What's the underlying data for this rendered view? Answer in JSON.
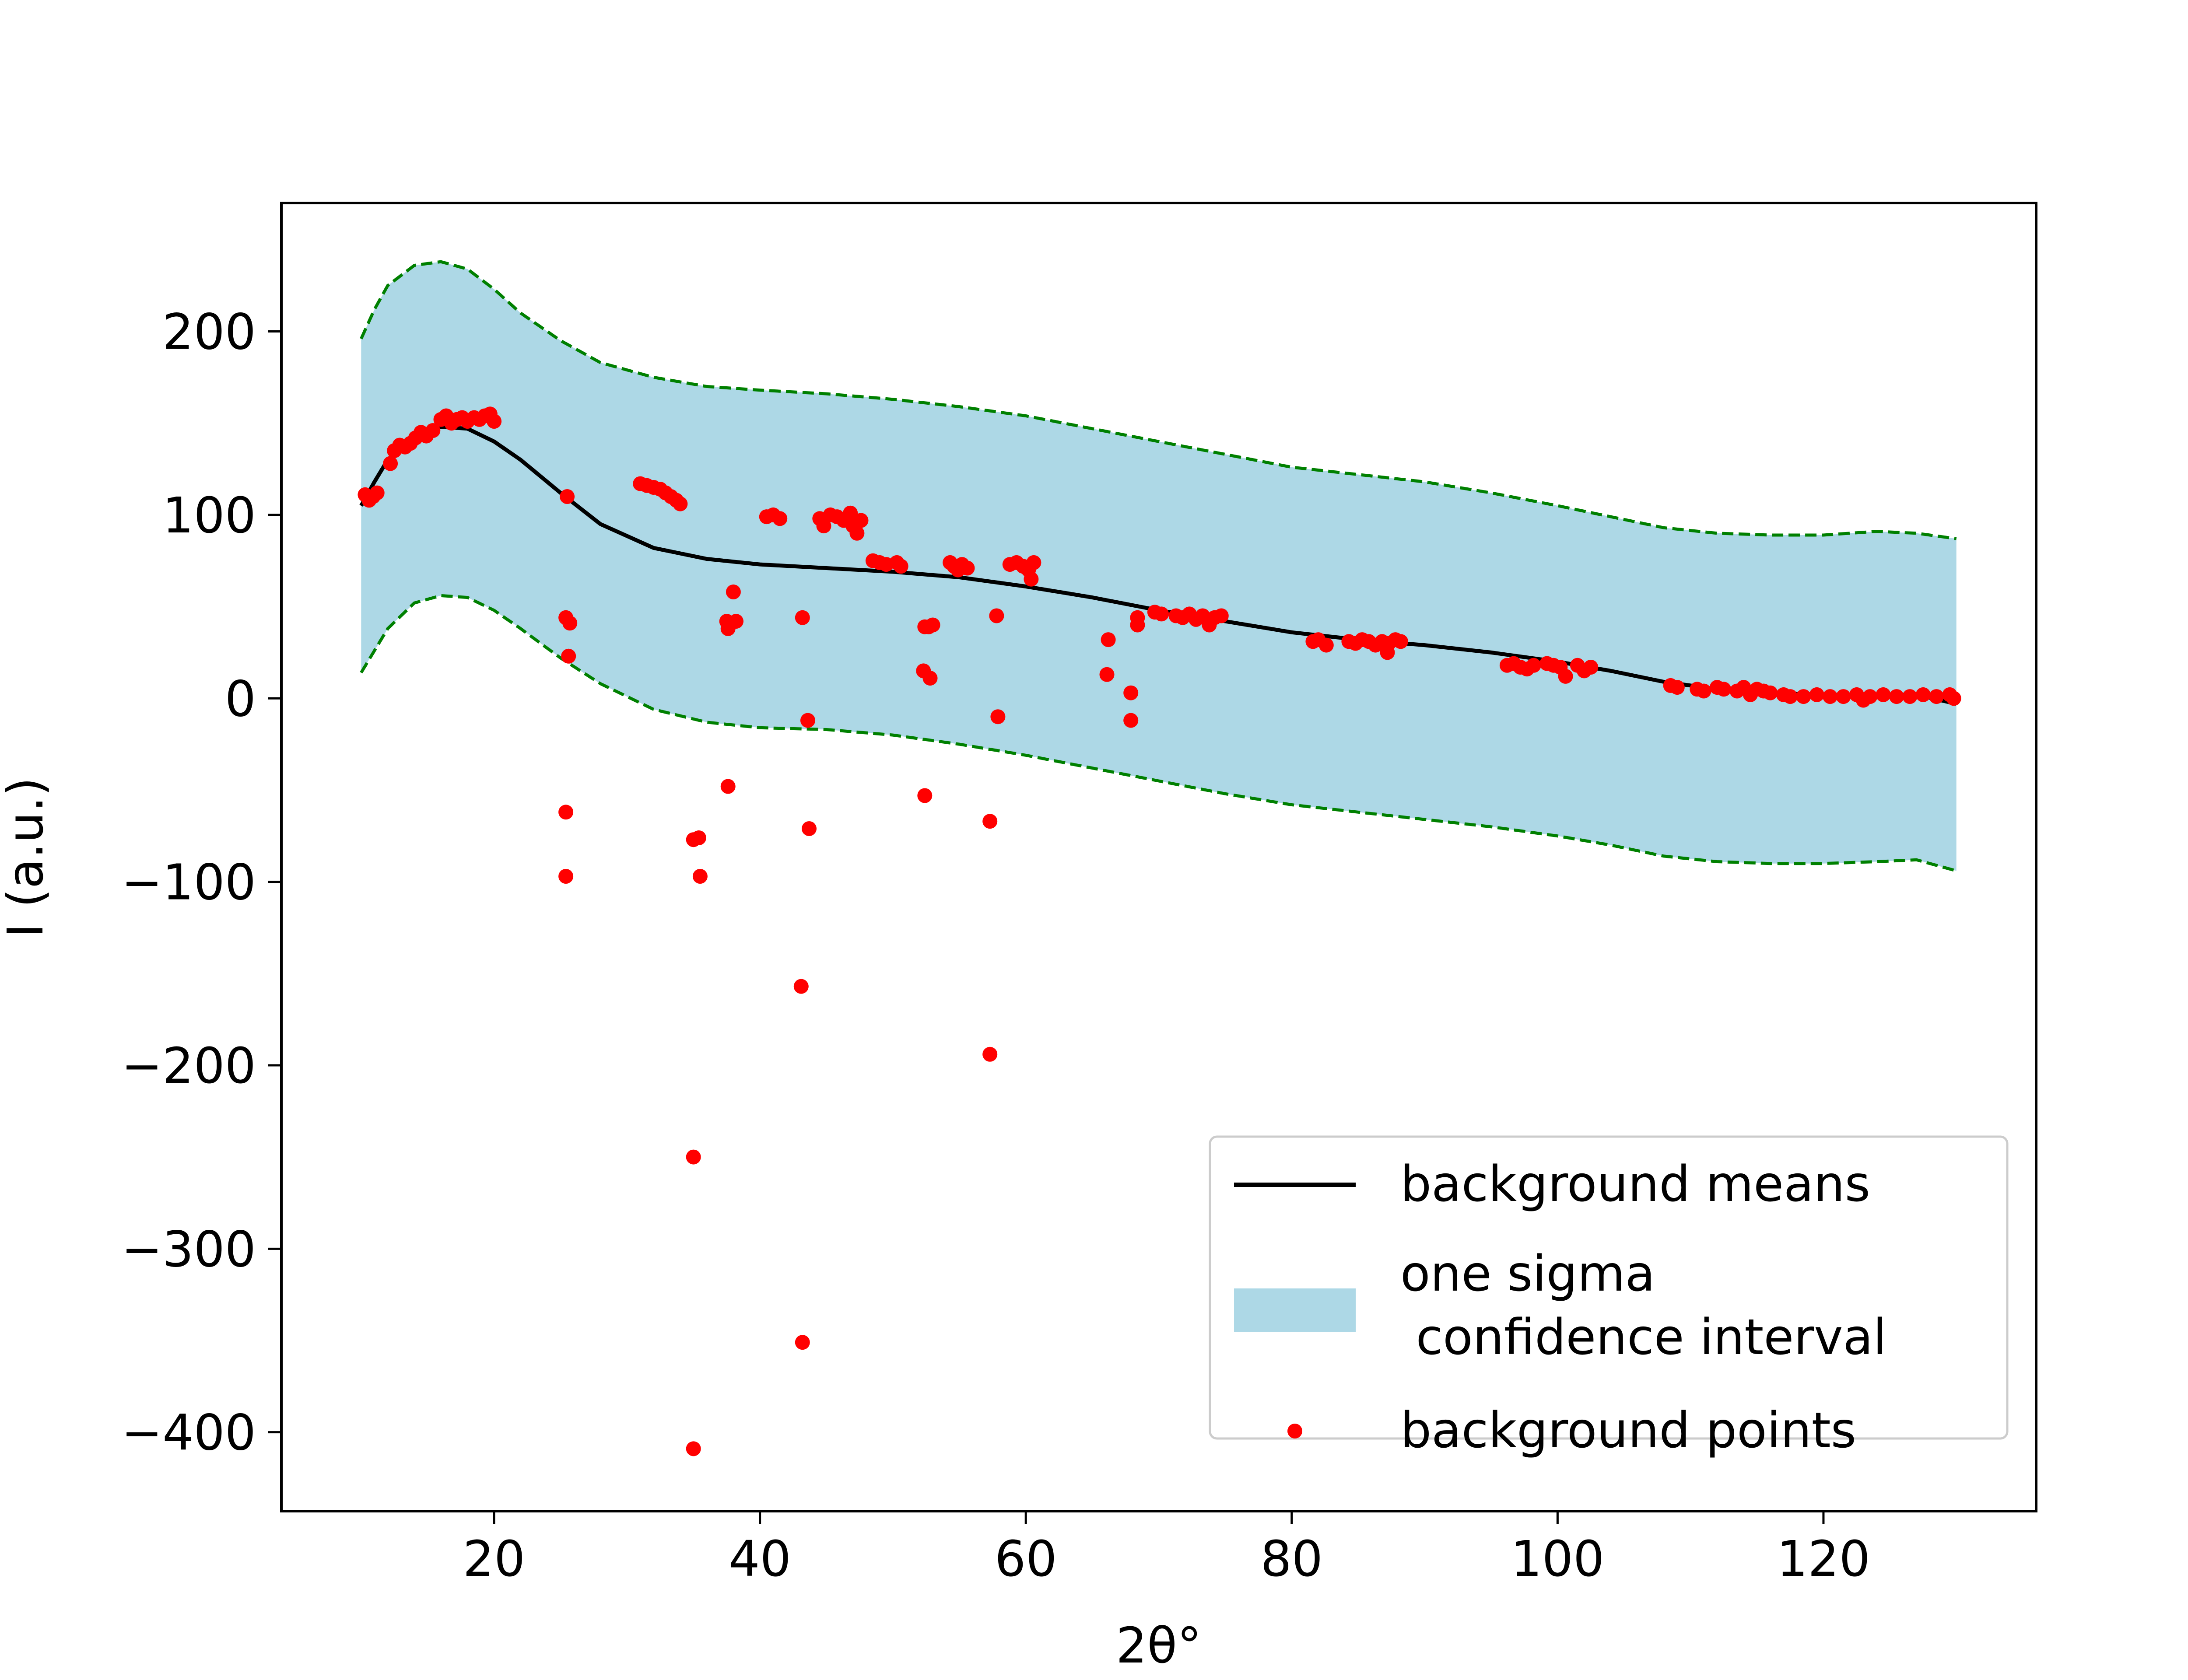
{
  "chart_data": {
    "type": "scatter",
    "title": "",
    "xlabel": "2θ°",
    "ylabel": "I (a.u.)",
    "xlim": [
      4,
      136
    ],
    "ylim": [
      -443,
      270
    ],
    "xticks": [
      20,
      40,
      60,
      80,
      100,
      120
    ],
    "yticks": [
      -400,
      -300,
      -200,
      -100,
      0,
      100,
      200
    ],
    "ytick_labels": [
      "−400",
      "−300",
      "−200",
      "−100",
      "0",
      "100",
      "200"
    ],
    "grid": false,
    "legend_position": "bottom-right",
    "colors": {
      "mean_line": "#000000",
      "band_fill": "#add8e6",
      "band_edge": "#008000",
      "points": "#ff0000"
    },
    "series": [
      {
        "name": "background means",
        "kind": "line",
        "x": [
          10,
          11,
          12,
          14,
          16,
          18,
          20,
          22,
          25,
          28,
          32,
          36,
          40,
          45,
          50,
          55,
          60,
          65,
          70,
          75,
          80,
          85,
          90,
          95,
          100,
          104,
          108,
          112,
          116,
          120,
          124,
          127,
          130
        ],
        "y": [
          105,
          118,
          130,
          142,
          148,
          147,
          140,
          130,
          112,
          95,
          82,
          76,
          73,
          71,
          69,
          66,
          61,
          55,
          48,
          42,
          36,
          32,
          29,
          25,
          20,
          15,
          9,
          5,
          3,
          2,
          2,
          2,
          -3
        ]
      },
      {
        "name": "one sigma\n confidence interval",
        "kind": "band",
        "x": [
          10,
          11,
          12,
          14,
          16,
          18,
          20,
          22,
          25,
          28,
          32,
          36,
          40,
          45,
          50,
          55,
          60,
          65,
          70,
          75,
          80,
          85,
          90,
          95,
          100,
          104,
          108,
          112,
          116,
          120,
          124,
          127,
          130
        ],
        "upper": [
          196,
          212,
          225,
          236,
          238,
          234,
          223,
          210,
          195,
          183,
          175,
          170,
          168,
          166,
          163,
          159,
          154,
          147,
          140,
          133,
          126,
          122,
          118,
          112,
          105,
          99,
          93,
          90,
          89,
          89,
          91,
          90,
          87
        ],
        "lower": [
          14,
          26,
          38,
          52,
          56,
          55,
          48,
          38,
          22,
          8,
          -6,
          -13,
          -16,
          -17,
          -20,
          -25,
          -31,
          -38,
          -45,
          -52,
          -58,
          -62,
          -66,
          -70,
          -75,
          -80,
          -86,
          -89,
          -90,
          -90,
          -89,
          -88,
          -94
        ]
      },
      {
        "name": "background points",
        "kind": "scatter",
        "points": [
          [
            10.3,
            111
          ],
          [
            10.6,
            108
          ],
          [
            10.9,
            110
          ],
          [
            11.2,
            112
          ],
          [
            12.2,
            128
          ],
          [
            12.5,
            135
          ],
          [
            12.9,
            138
          ],
          [
            13.3,
            137
          ],
          [
            13.7,
            139
          ],
          [
            14.1,
            142
          ],
          [
            14.5,
            145
          ],
          [
            14.9,
            143
          ],
          [
            15.4,
            146
          ],
          [
            16.0,
            152
          ],
          [
            16.4,
            154
          ],
          [
            16.8,
            150
          ],
          [
            17.2,
            152
          ],
          [
            17.6,
            153
          ],
          [
            18.0,
            151
          ],
          [
            18.5,
            153
          ],
          [
            18.9,
            152
          ],
          [
            19.3,
            154
          ],
          [
            19.7,
            155
          ],
          [
            20.0,
            151
          ],
          [
            25.5,
            110
          ],
          [
            25.4,
            44
          ],
          [
            25.7,
            41
          ],
          [
            25.6,
            23
          ],
          [
            25.4,
            -62
          ],
          [
            25.4,
            -97
          ],
          [
            31.0,
            117
          ],
          [
            31.5,
            116
          ],
          [
            32.0,
            115
          ],
          [
            32.5,
            114
          ],
          [
            32.9,
            112
          ],
          [
            33.3,
            110
          ],
          [
            33.7,
            108
          ],
          [
            34.0,
            106
          ],
          [
            35.0,
            -77
          ],
          [
            35.4,
            -76
          ],
          [
            35.5,
            -97
          ],
          [
            35.0,
            -250
          ],
          [
            35.0,
            -409
          ],
          [
            37.5,
            42
          ],
          [
            37.6,
            38
          ],
          [
            38.0,
            58
          ],
          [
            38.2,
            42
          ],
          [
            37.6,
            -48
          ],
          [
            40.5,
            99
          ],
          [
            41.0,
            100
          ],
          [
            41.5,
            98
          ],
          [
            43.2,
            44
          ],
          [
            43.6,
            -12
          ],
          [
            43.7,
            -71
          ],
          [
            43.1,
            -157
          ],
          [
            43.2,
            -351
          ],
          [
            44.5,
            98
          ],
          [
            44.8,
            94
          ],
          [
            45.3,
            100
          ],
          [
            45.8,
            99
          ],
          [
            46.3,
            97
          ],
          [
            46.8,
            101
          ],
          [
            47.0,
            94
          ],
          [
            47.3,
            90
          ],
          [
            47.6,
            97
          ],
          [
            48.5,
            75
          ],
          [
            49.0,
            74
          ],
          [
            49.5,
            73
          ],
          [
            50.3,
            74
          ],
          [
            50.6,
            72
          ],
          [
            52.4,
            39
          ],
          [
            52.7,
            39
          ],
          [
            53.0,
            40
          ],
          [
            52.3,
            15
          ],
          [
            52.8,
            11
          ],
          [
            52.4,
            -53
          ],
          [
            54.3,
            74
          ],
          [
            54.6,
            72
          ],
          [
            54.9,
            70
          ],
          [
            55.2,
            73
          ],
          [
            55.6,
            71
          ],
          [
            57.3,
            -67
          ],
          [
            57.3,
            -194
          ],
          [
            57.8,
            45
          ],
          [
            57.9,
            -10
          ],
          [
            58.8,
            73
          ],
          [
            59.3,
            74
          ],
          [
            59.8,
            72
          ],
          [
            60.2,
            70
          ],
          [
            60.6,
            74
          ],
          [
            60.4,
            65
          ],
          [
            66.2,
            32
          ],
          [
            66.1,
            13
          ],
          [
            67.9,
            3
          ],
          [
            67.9,
            -12
          ],
          [
            68.4,
            44
          ],
          [
            68.4,
            40
          ],
          [
            69.7,
            47
          ],
          [
            70.2,
            46
          ],
          [
            71.3,
            45
          ],
          [
            71.8,
            44
          ],
          [
            72.3,
            46
          ],
          [
            72.8,
            43
          ],
          [
            73.3,
            45
          ],
          [
            73.8,
            40
          ],
          [
            74.2,
            44
          ],
          [
            74.7,
            45
          ],
          [
            81.6,
            31
          ],
          [
            82.0,
            32
          ],
          [
            82.6,
            29
          ],
          [
            84.3,
            31
          ],
          [
            84.8,
            30
          ],
          [
            85.3,
            32
          ],
          [
            85.8,
            31
          ],
          [
            86.3,
            29
          ],
          [
            86.8,
            31
          ],
          [
            87.3,
            30
          ],
          [
            87.8,
            32
          ],
          [
            88.2,
            31
          ],
          [
            87.2,
            25
          ],
          [
            96.2,
            18
          ],
          [
            96.7,
            19
          ],
          [
            97.2,
            17
          ],
          [
            97.7,
            16
          ],
          [
            98.2,
            18
          ],
          [
            99.2,
            19
          ],
          [
            99.7,
            18
          ],
          [
            100.2,
            17
          ],
          [
            100.6,
            12
          ],
          [
            101.5,
            18
          ],
          [
            102.0,
            15
          ],
          [
            102.5,
            17
          ],
          [
            108.5,
            7
          ],
          [
            109.0,
            6
          ],
          [
            110.5,
            5
          ],
          [
            111.0,
            4
          ],
          [
            112.0,
            6
          ],
          [
            112.5,
            5
          ],
          [
            113.5,
            4
          ],
          [
            114.0,
            6
          ],
          [
            114.5,
            2
          ],
          [
            115.0,
            5
          ],
          [
            115.5,
            4
          ],
          [
            116.0,
            3
          ],
          [
            117.0,
            2
          ],
          [
            117.5,
            1
          ],
          [
            118.5,
            1
          ],
          [
            119.5,
            2
          ],
          [
            120.5,
            1
          ],
          [
            121.5,
            1
          ],
          [
            122.5,
            2
          ],
          [
            123.0,
            -1
          ],
          [
            123.5,
            1
          ],
          [
            124.5,
            2
          ],
          [
            125.5,
            1
          ],
          [
            126.5,
            1
          ],
          [
            127.5,
            2
          ],
          [
            128.5,
            1
          ],
          [
            129.5,
            2
          ],
          [
            129.8,
            0
          ]
        ]
      }
    ]
  }
}
